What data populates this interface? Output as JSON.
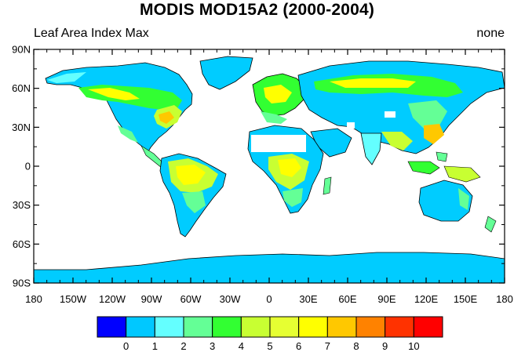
{
  "title": "MODIS MOD15A2 (2000-2004)",
  "left_label": "Leaf Area Index Max",
  "right_label": "none",
  "lat_labels": [
    "90N",
    "60N",
    "30N",
    "0",
    "30S",
    "60S",
    "90S"
  ],
  "lon_labels": [
    "180",
    "150W",
    "120W",
    "90W",
    "60W",
    "30W",
    "0",
    "30E",
    "60E",
    "90E",
    "120E",
    "150E",
    "180"
  ],
  "colorbar": {
    "labels": [
      "0",
      "1",
      "2",
      "3",
      "4",
      "5",
      "6",
      "7",
      "8",
      "9",
      "10"
    ],
    "colors": [
      "#0000ff",
      "#00c8ff",
      "#64ffff",
      "#64ff96",
      "#32ff32",
      "#c8ff32",
      "#e6ff32",
      "#ffff00",
      "#ffc800",
      "#ff8200",
      "#ff3200",
      "#ff0000"
    ]
  },
  "colors": {
    "ocean": "#ffffff",
    "coast": "#000000",
    "ice": "#00ccff"
  }
}
